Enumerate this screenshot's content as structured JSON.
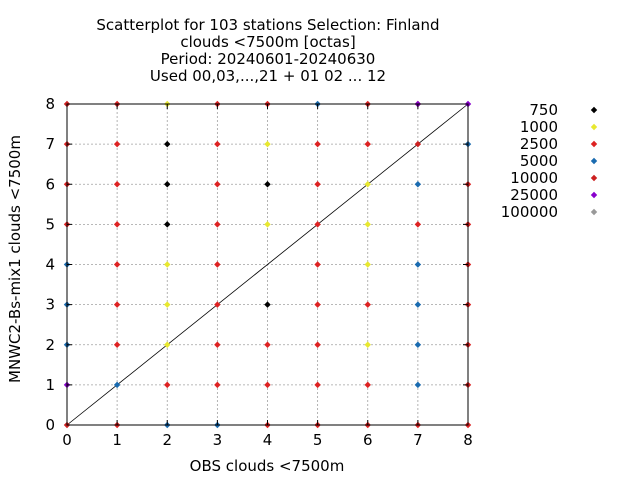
{
  "chart_data": {
    "type": "scatter",
    "title_lines": [
      "Scatterplot for  103 stations Selection: Finland",
      "clouds <7500m [octas]",
      "Period: 20240601-20240630",
      "Used 00,03,...,21 + 01 02 ... 12"
    ],
    "xlabel": "OBS clouds <7500m",
    "ylabel": "MNWC2-Bs-mix1 clouds <7500m",
    "xlim": [
      0,
      8
    ],
    "ylim": [
      0,
      8
    ],
    "xticks": [
      "0",
      "1",
      "2",
      "3",
      "4",
      "5",
      "6",
      "7",
      "8"
    ],
    "yticks": [
      "0",
      "1",
      "2",
      "3",
      "4",
      "5",
      "6",
      "7",
      "8"
    ],
    "grid": true,
    "legend_position": "right",
    "diagonal": true,
    "series": [
      {
        "name": "750",
        "color": "#000000",
        "points": [
          [
            2,
            7
          ],
          [
            2,
            6
          ],
          [
            4,
            6
          ],
          [
            2,
            5
          ],
          [
            4,
            3
          ]
        ]
      },
      {
        "name": "1000",
        "color": "#e8e830",
        "points": [
          [
            2,
            8
          ],
          [
            4,
            7
          ],
          [
            6,
            6
          ],
          [
            4,
            5
          ],
          [
            6,
            5
          ],
          [
            2,
            4
          ],
          [
            6,
            4
          ],
          [
            2,
            3
          ],
          [
            2,
            2
          ],
          [
            6,
            2
          ]
        ]
      },
      {
        "name": "2500",
        "color": "#dd2222",
        "points": [
          [
            1,
            8
          ],
          [
            3,
            8
          ],
          [
            4,
            8
          ],
          [
            6,
            8
          ],
          [
            0,
            7
          ],
          [
            1,
            7
          ],
          [
            3,
            7
          ],
          [
            5,
            7
          ],
          [
            6,
            7
          ],
          [
            0,
            6
          ],
          [
            1,
            6
          ],
          [
            3,
            6
          ],
          [
            5,
            6
          ],
          [
            8,
            6
          ],
          [
            0,
            5
          ],
          [
            1,
            5
          ],
          [
            3,
            5
          ],
          [
            5,
            5
          ],
          [
            7,
            5
          ],
          [
            8,
            5
          ],
          [
            1,
            4
          ],
          [
            3,
            4
          ],
          [
            5,
            4
          ],
          [
            8,
            4
          ],
          [
            1,
            3
          ],
          [
            3,
            3
          ],
          [
            5,
            3
          ],
          [
            6,
            3
          ],
          [
            8,
            3
          ],
          [
            1,
            2
          ],
          [
            3,
            2
          ],
          [
            4,
            2
          ],
          [
            5,
            2
          ],
          [
            8,
            2
          ],
          [
            2,
            1
          ],
          [
            3,
            1
          ],
          [
            4,
            1
          ],
          [
            5,
            1
          ],
          [
            6,
            1
          ],
          [
            8,
            1
          ],
          [
            1,
            0
          ],
          [
            4,
            0
          ],
          [
            5,
            0
          ],
          [
            6,
            0
          ],
          [
            7,
            0
          ],
          [
            8,
            0
          ]
        ]
      },
      {
        "name": "5000",
        "color": "#1a6bb0",
        "points": [
          [
            5,
            8
          ],
          [
            8,
            7
          ],
          [
            7,
            6
          ],
          [
            0,
            4
          ],
          [
            7,
            4
          ],
          [
            0,
            3
          ],
          [
            7,
            3
          ],
          [
            0,
            2
          ],
          [
            7,
            2
          ],
          [
            1,
            1
          ],
          [
            7,
            1
          ],
          [
            2,
            0
          ],
          [
            3,
            0
          ]
        ]
      },
      {
        "name": "10000",
        "color": "#cc2020",
        "points": [
          [
            0,
            8
          ],
          [
            7,
            8
          ],
          [
            7,
            7
          ],
          [
            0,
            0
          ]
        ]
      },
      {
        "name": "25000",
        "color": "#8800cc",
        "points": [
          [
            7,
            8
          ],
          [
            8,
            8
          ],
          [
            0,
            1
          ]
        ]
      },
      {
        "name": "100000",
        "color": "#999999",
        "points": []
      }
    ]
  }
}
